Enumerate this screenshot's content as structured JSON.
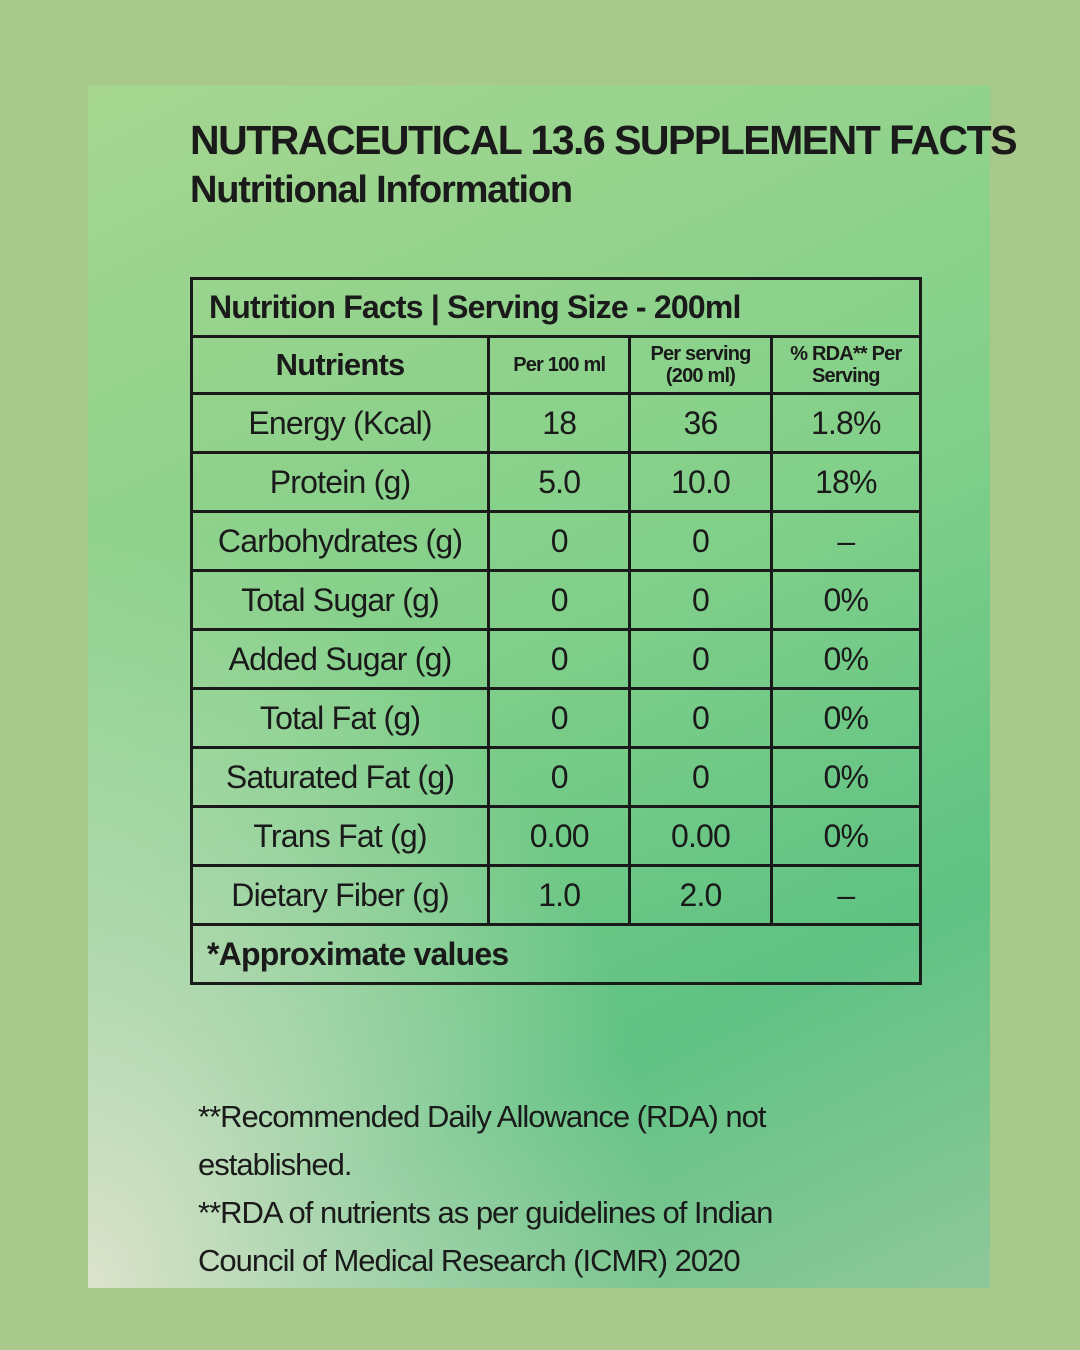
{
  "header": {
    "title": "NUTRACEUTICAL 13.6 SUPPLEMENT FACTS",
    "subtitle": "Nutritional Information"
  },
  "table": {
    "caption": "Nutrition Facts | Serving Size - 200ml",
    "columns": [
      "Nutrients",
      "Per 100 ml",
      "Per serving (200 ml)",
      "% RDA** Per Serving"
    ],
    "rows": [
      [
        "Energy (Kcal)",
        "18",
        "36",
        "1.8%"
      ],
      [
        "Protein (g)",
        "5.0",
        "10.0",
        "18%"
      ],
      [
        "Carbohydrates (g)",
        "0",
        "0",
        "–"
      ],
      [
        "Total Sugar (g)",
        "0",
        "0",
        "0%"
      ],
      [
        "Added Sugar (g)",
        "0",
        "0",
        "0%"
      ],
      [
        "Total Fat (g)",
        "0",
        "0",
        "0%"
      ],
      [
        "Saturated Fat (g)",
        "0",
        "0",
        "0%"
      ],
      [
        "Trans Fat (g)",
        "0.00",
        "0.00",
        "0%"
      ],
      [
        "Dietary Fiber (g)",
        "1.0",
        "2.0",
        "–"
      ]
    ],
    "note": "*Approximate values"
  },
  "footnotes": [
    "**Recommended Daily Allowance (RDA) not established.",
    "**RDA of nutrients as per guidelines of Indian Council of Medical Research (ICMR) 2020"
  ]
}
